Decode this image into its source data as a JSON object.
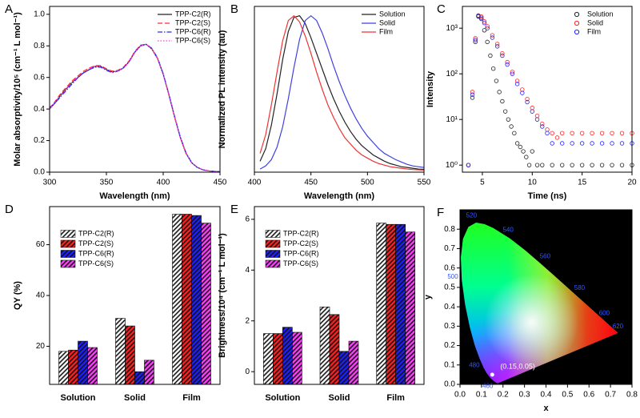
{
  "chart_data": [
    {
      "type": "line",
      "panel": "A",
      "xlabel": "Wavelength (nm)",
      "ylabel": "Molar absorptivity/10⁵ (cm⁻¹ L mol⁻¹)",
      "xlim": [
        300,
        450
      ],
      "xticks": [
        300,
        350,
        400,
        450
      ],
      "ylim": [
        0,
        1.05
      ],
      "yticks": [
        {
          "value": 0,
          "label": "0.0"
        },
        0.2,
        0.4,
        0.6,
        0.8,
        {
          "value": 1,
          "label": "1.0"
        }
      ],
      "legend": "upper right",
      "x": [
        300,
        305,
        310,
        315,
        320,
        325,
        330,
        335,
        340,
        345,
        350,
        355,
        360,
        365,
        370,
        375,
        380,
        385,
        390,
        395,
        400,
        405,
        410,
        415,
        420,
        425,
        430,
        435,
        440,
        445,
        450
      ],
      "series": [
        {
          "name": "TPP-C2(R)",
          "color": "#222222",
          "style": "solid",
          "values": [
            0.4,
            0.44,
            0.49,
            0.53,
            0.57,
            0.6,
            0.63,
            0.65,
            0.67,
            0.67,
            0.65,
            0.635,
            0.64,
            0.66,
            0.7,
            0.76,
            0.8,
            0.81,
            0.78,
            0.72,
            0.62,
            0.49,
            0.35,
            0.22,
            0.12,
            0.06,
            0.03,
            0.015,
            0.008,
            0.005,
            0.003
          ]
        },
        {
          "name": "TPP-C2(S)",
          "color": "#ff2a2a",
          "style": "dash",
          "values": [
            0.4,
            0.45,
            0.5,
            0.54,
            0.58,
            0.61,
            0.64,
            0.66,
            0.675,
            0.675,
            0.655,
            0.64,
            0.645,
            0.665,
            0.705,
            0.765,
            0.805,
            0.81,
            0.78,
            0.72,
            0.62,
            0.49,
            0.35,
            0.22,
            0.12,
            0.06,
            0.03,
            0.015,
            0.008,
            0.005,
            0.003
          ]
        },
        {
          "name": "TPP-C6(R)",
          "color": "#2a2aff",
          "style": "dashdot",
          "values": [
            0.41,
            0.44,
            0.48,
            0.52,
            0.56,
            0.6,
            0.63,
            0.65,
            0.665,
            0.665,
            0.645,
            0.63,
            0.64,
            0.66,
            0.7,
            0.76,
            0.8,
            0.81,
            0.785,
            0.725,
            0.625,
            0.495,
            0.355,
            0.225,
            0.125,
            0.062,
            0.03,
            0.015,
            0.008,
            0.005,
            0.003
          ]
        },
        {
          "name": "TPP-C6(S)",
          "color": "#ff33ff",
          "style": "dot",
          "values": [
            0.4,
            0.445,
            0.49,
            0.53,
            0.57,
            0.605,
            0.635,
            0.655,
            0.67,
            0.67,
            0.65,
            0.635,
            0.64,
            0.66,
            0.7,
            0.76,
            0.8,
            0.81,
            0.78,
            0.72,
            0.62,
            0.49,
            0.35,
            0.22,
            0.12,
            0.06,
            0.03,
            0.015,
            0.008,
            0.005,
            0.003
          ]
        }
      ]
    },
    {
      "type": "line",
      "panel": "B",
      "xlabel": "Wavelength (nm)",
      "ylabel": "Normalized PL intensity (au)",
      "xlim": [
        400,
        550
      ],
      "xticks": [
        400,
        450,
        500,
        550
      ],
      "ylim": [
        0,
        1.06
      ],
      "legend": "upper right",
      "x": [
        405,
        410,
        415,
        420,
        425,
        430,
        435,
        440,
        445,
        450,
        455,
        460,
        465,
        470,
        475,
        480,
        485,
        490,
        495,
        500,
        505,
        510,
        515,
        520,
        525,
        530,
        535,
        540,
        545,
        550
      ],
      "series": [
        {
          "name": "Solution",
          "color": "#222222",
          "style": "solid",
          "values": [
            0.07,
            0.15,
            0.3,
            0.5,
            0.72,
            0.9,
            0.99,
            1.0,
            0.95,
            0.86,
            0.76,
            0.66,
            0.56,
            0.47,
            0.39,
            0.32,
            0.26,
            0.21,
            0.17,
            0.14,
            0.11,
            0.09,
            0.07,
            0.055,
            0.045,
            0.035,
            0.03,
            0.025,
            0.02,
            0.018
          ]
        },
        {
          "name": "Solid",
          "color": "#4040e0",
          "style": "solid",
          "values": [
            0.02,
            0.04,
            0.08,
            0.16,
            0.29,
            0.47,
            0.67,
            0.85,
            0.97,
            1.0,
            0.97,
            0.89,
            0.79,
            0.68,
            0.58,
            0.49,
            0.41,
            0.34,
            0.28,
            0.23,
            0.19,
            0.15,
            0.12,
            0.1,
            0.08,
            0.065,
            0.05,
            0.04,
            0.035,
            0.03
          ]
        },
        {
          "name": "Film",
          "color": "#ee3333",
          "style": "solid",
          "values": [
            0.12,
            0.24,
            0.43,
            0.64,
            0.84,
            0.97,
            1.0,
            0.96,
            0.87,
            0.76,
            0.64,
            0.53,
            0.43,
            0.35,
            0.28,
            0.22,
            0.18,
            0.14,
            0.11,
            0.09,
            0.07,
            0.055,
            0.045,
            0.035,
            0.03,
            0.025,
            0.02,
            0.017,
            0.015,
            0.013
          ]
        }
      ]
    },
    {
      "type": "scatter",
      "panel": "C",
      "xlabel": "Time (ns)",
      "ylabel": "Intensity",
      "ylog": true,
      "xlim": [
        3,
        20
      ],
      "xticks": [
        5,
        10,
        15,
        20
      ],
      "ylim": [
        0.7,
        3000
      ],
      "yticks": [
        {
          "value": 1,
          "label": "10⁰"
        },
        {
          "value": 10,
          "label": "10¹"
        },
        {
          "value": 100,
          "label": "10²"
        },
        {
          "value": 1000,
          "label": "10³"
        }
      ],
      "legend": "upper right",
      "series": [
        {
          "name": "Solution",
          "color": "#222222",
          "x": [
            3.6,
            4.0,
            4.3,
            4.6,
            4.9,
            5.2,
            5.5,
            5.8,
            6.1,
            6.4,
            6.7,
            7.0,
            7.3,
            7.6,
            7.9,
            8.2,
            8.5,
            8.8,
            9.1,
            9.4,
            9.7,
            10.0,
            10.5,
            11,
            12,
            13,
            14,
            15,
            16,
            17,
            18,
            19,
            20
          ],
          "values": [
            1,
            30,
            500,
            1800,
            1600,
            900,
            500,
            250,
            130,
            70,
            40,
            25,
            15,
            10,
            7,
            5,
            3,
            2.5,
            2,
            1.5,
            1,
            2,
            1,
            1,
            1,
            1,
            1,
            1,
            1,
            1,
            1,
            1,
            1
          ]
        },
        {
          "name": "Solid",
          "color": "#ff2020",
          "x": [
            3.6,
            4.0,
            4.3,
            4.6,
            4.9,
            5.2,
            5.5,
            6,
            6.5,
            7,
            7.5,
            8,
            8.5,
            9,
            9.5,
            10,
            10.5,
            11,
            11.5,
            12,
            12.5,
            13,
            14,
            15,
            16,
            17,
            18,
            19,
            20
          ],
          "values": [
            1,
            40,
            600,
            1900,
            1800,
            1400,
            1100,
            700,
            450,
            280,
            180,
            110,
            70,
            45,
            28,
            18,
            12,
            8,
            6,
            5,
            4,
            5,
            5,
            5,
            5,
            5,
            5,
            5,
            5
          ]
        },
        {
          "name": "Film",
          "color": "#2020ff",
          "x": [
            3.6,
            4.0,
            4.3,
            4.6,
            4.9,
            5.2,
            5.5,
            6,
            6.5,
            7,
            7.5,
            8,
            8.5,
            9,
            9.5,
            10,
            10.5,
            11,
            11.5,
            12,
            13,
            14,
            15,
            16,
            17,
            18,
            19,
            20
          ],
          "values": [
            1,
            35,
            550,
            1850,
            1700,
            1300,
            1000,
            620,
            400,
            250,
            160,
            100,
            60,
            38,
            24,
            15,
            10,
            7,
            5,
            3,
            3,
            3,
            3,
            3,
            3,
            3,
            3,
            3
          ]
        }
      ]
    },
    {
      "type": "bar",
      "panel": "D",
      "ylabel": "QY (%)",
      "ylim": [
        5,
        75
      ],
      "yticks": [
        20,
        40,
        60
      ],
      "legend": "upper left",
      "categories": [
        "Solution",
        "Solid",
        "Film"
      ],
      "series": [
        {
          "name": "TPP-C2(R)",
          "color": "#222222",
          "values": [
            18,
            31,
            72
          ]
        },
        {
          "name": "TPP-C2(S)",
          "color": "#ff2020",
          "values": [
            18.5,
            28,
            72
          ]
        },
        {
          "name": "TPP-C6(R)",
          "color": "#2020ff",
          "values": [
            22,
            10,
            71.5
          ]
        },
        {
          "name": "TPP-C6(S)",
          "color": "#ff40ff",
          "values": [
            19.5,
            14.5,
            68.5
          ]
        }
      ]
    },
    {
      "type": "bar",
      "panel": "E",
      "ylabel": "Brightness/10⁴ (cm⁻¹ L mol⁻¹)",
      "ylim": [
        -0.5,
        6.5
      ],
      "yticks": [
        0,
        2,
        4,
        6
      ],
      "legend": "upper left",
      "categories": [
        "Solution",
        "Solid",
        "Film"
      ],
      "series": [
        {
          "name": "TPP-C2(R)",
          "color": "#222222",
          "values": [
            1.5,
            2.55,
            5.85
          ]
        },
        {
          "name": "TPP-C2(S)",
          "color": "#ff2020",
          "values": [
            1.5,
            2.25,
            5.8
          ]
        },
        {
          "name": "TPP-C6(R)",
          "color": "#2020ff",
          "values": [
            1.75,
            0.8,
            5.8
          ]
        },
        {
          "name": "TPP-C6(S)",
          "color": "#ff40ff",
          "values": [
            1.55,
            1.2,
            5.5
          ]
        }
      ]
    },
    {
      "type": "cie",
      "panel": "F",
      "xlabel": "x",
      "ylabel": "y",
      "xlim": [
        0,
        0.8
      ],
      "xticks": [
        {
          "value": 0,
          "label": "0.0"
        },
        0.1,
        0.2,
        0.3,
        0.4,
        0.5,
        0.6,
        0.7,
        0.8
      ],
      "ylim": [
        0,
        0.9
      ],
      "yticks": [
        {
          "value": 0,
          "label": "0.0"
        },
        0.1,
        0.2,
        0.3,
        0.4,
        0.5,
        0.6,
        0.7,
        0.8
      ],
      "locus": {
        "wavelength": [
          380,
          450,
          460,
          470,
          475,
          480,
          485,
          490,
          495,
          500,
          505,
          510,
          515,
          520,
          525,
          530,
          540,
          550,
          560,
          570,
          580,
          590,
          600,
          610,
          620,
          640,
          700
        ],
        "x": [
          0.1741,
          0.1566,
          0.144,
          0.1241,
          0.1096,
          0.0913,
          0.0687,
          0.0454,
          0.0235,
          0.0082,
          0.0039,
          0.0139,
          0.0389,
          0.0743,
          0.1142,
          0.1547,
          0.2296,
          0.3016,
          0.3731,
          0.4441,
          0.5125,
          0.5752,
          0.627,
          0.6658,
          0.6915,
          0.719,
          0.7347
        ],
        "y": [
          0.005,
          0.0177,
          0.0297,
          0.0578,
          0.0868,
          0.1327,
          0.2007,
          0.295,
          0.4127,
          0.5384,
          0.6548,
          0.7502,
          0.812,
          0.8338,
          0.8262,
          0.8059,
          0.7543,
          0.6923,
          0.6245,
          0.5547,
          0.4866,
          0.4242,
          0.3725,
          0.334,
          0.3083,
          0.2809,
          0.2653
        ]
      },
      "wavelength_labels": [
        {
          "value": 460,
          "label": "460"
        },
        {
          "value": 480,
          "label": "480"
        },
        {
          "value": 500,
          "label": "500"
        },
        {
          "value": 520,
          "label": "520"
        },
        {
          "value": 540,
          "label": "540"
        },
        {
          "value": 560,
          "label": "560"
        },
        {
          "value": 580,
          "label": "580"
        },
        {
          "value": 600,
          "label": "600"
        },
        {
          "value": 620,
          "label": "620"
        }
      ],
      "points": {
        "x": [
          0.15
        ],
        "y": [
          0.05
        ],
        "labels": [
          "(0.15,0.05)"
        ]
      }
    }
  ]
}
